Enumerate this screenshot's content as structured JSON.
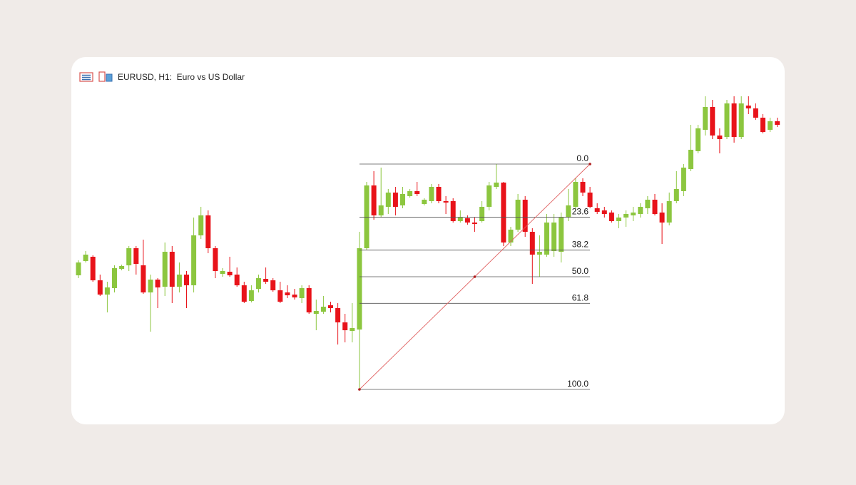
{
  "chart_data": {
    "type": "candlestick",
    "title": "EURUSD, H1:  Euro vs US Dollar",
    "up_color": "#8cc63f",
    "down_color": "#e8131a",
    "ylim": [
      5,
      480
    ],
    "open": [
      214,
      234,
      240,
      207,
      187,
      196,
      223,
      228,
      252,
      228,
      190,
      208,
      198,
      247,
      198,
      215,
      200,
      270,
      298,
      252,
      216,
      219,
      215,
      200,
      178,
      195,
      209,
      207,
      193,
      190,
      187,
      182,
      196,
      160,
      163,
      172,
      168,
      148,
      136,
      138,
      252,
      340,
      298,
      310,
      330,
      312,
      325,
      332,
      314,
      318,
      338,
      318,
      318,
      290,
      294,
      288,
      290,
      310,
      338,
      344,
      260,
      278,
      320,
      275,
      243,
      243,
      248,
      247,
      295,
      310,
      345,
      330,
      308,
      305,
      302,
      290,
      295,
      298,
      300,
      308,
      320,
      302,
      288,
      318,
      332,
      363,
      388,
      418,
      450,
      410,
      408,
      455,
      408,
      452,
      448,
      435,
      418,
      430
    ],
    "high": [
      235,
      248,
      242,
      215,
      205,
      228,
      229,
      255,
      255,
      264,
      215,
      210,
      260,
      255,
      232,
      220,
      295,
      310,
      305,
      255,
      224,
      240,
      225,
      205,
      200,
      215,
      225,
      210,
      205,
      200,
      195,
      200,
      200,
      180,
      185,
      177,
      175,
      160,
      175,
      275,
      345,
      360,
      365,
      335,
      338,
      338,
      335,
      345,
      322,
      342,
      342,
      325,
      322,
      305,
      298,
      295,
      318,
      345,
      370,
      345,
      282,
      328,
      325,
      280,
      270,
      300,
      300,
      302,
      335,
      350,
      350,
      338,
      315,
      310,
      305,
      300,
      305,
      310,
      315,
      325,
      328,
      315,
      330,
      360,
      370,
      425,
      425,
      465,
      460,
      420,
      460,
      465,
      465,
      465,
      455,
      440,
      435,
      435
    ],
    "low": [
      210,
      232,
      205,
      185,
      162,
      190,
      221,
      220,
      215,
      188,
      135,
      168,
      185,
      175,
      190,
      168,
      190,
      265,
      245,
      210,
      212,
      212,
      198,
      175,
      176,
      190,
      202,
      191,
      175,
      182,
      180,
      175,
      160,
      137,
      160,
      162,
      117,
      120,
      120,
      54,
      250,
      292,
      295,
      300,
      298,
      308,
      323,
      325,
      312,
      315,
      315,
      300,
      288,
      288,
      285,
      275,
      288,
      305,
      335,
      255,
      255,
      275,
      268,
      202,
      212,
      240,
      240,
      232,
      290,
      305,
      325,
      308,
      300,
      295,
      288,
      280,
      282,
      290,
      295,
      300,
      298,
      258,
      284,
      315,
      325,
      360,
      385,
      410,
      405,
      385,
      405,
      400,
      405,
      440,
      432,
      413,
      415,
      422
    ],
    "close": [
      232,
      243,
      207,
      187,
      197,
      224,
      227,
      252,
      230,
      190,
      208,
      197,
      247,
      198,
      215,
      200,
      270,
      298,
      252,
      220,
      220,
      214,
      200,
      177,
      193,
      210,
      205,
      193,
      177,
      186,
      183,
      196,
      162,
      164,
      170,
      168,
      148,
      137,
      140,
      252,
      340,
      298,
      312,
      330,
      310,
      328,
      332,
      328,
      320,
      338,
      318,
      316,
      290,
      295,
      288,
      286,
      310,
      340,
      344,
      260,
      278,
      320,
      275,
      243,
      247,
      288,
      288,
      295,
      312,
      345,
      330,
      310,
      303,
      300,
      290,
      295,
      300,
      302,
      310,
      320,
      300,
      288,
      318,
      335,
      365,
      390,
      420,
      450,
      410,
      405,
      455,
      408,
      455,
      448,
      435,
      415,
      430,
      425
    ],
    "fibonacci": {
      "start_index": 39,
      "start_price": 54,
      "end_index": 71,
      "end_price": 370,
      "levels": [
        {
          "value": 0,
          "label": "0.0"
        },
        23.6,
        38.2,
        {
          "value": 50,
          "label": "50.0"
        },
        61.8,
        {
          "value": 100,
          "label": "100.0"
        }
      ]
    }
  }
}
